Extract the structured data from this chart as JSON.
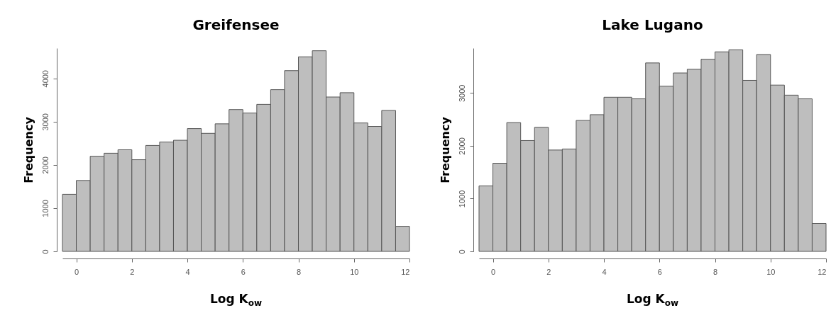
{
  "chart_data": [
    {
      "type": "histogram",
      "title": "Greifensee",
      "xlabel": "Log K$_{ow}$",
      "ylabel": "Frequency",
      "color": "#bebebe",
      "bins": [
        -0.5,
        0,
        0.5,
        1,
        1.5,
        2,
        2.5,
        3,
        3.5,
        4,
        4.5,
        5,
        5.5,
        6,
        6.5,
        7,
        7.5,
        8,
        8.5,
        9,
        9.5,
        10,
        10.5,
        11,
        11.5,
        12
      ],
      "values": [
        1320,
        1640,
        2200,
        2270,
        2350,
        2120,
        2450,
        2530,
        2570,
        2840,
        2730,
        2950,
        3280,
        3200,
        3400,
        3740,
        4180,
        4500,
        4640,
        3570,
        3670,
        2970,
        2890,
        3260,
        580
      ],
      "xlim": [
        -0.5,
        12
      ],
      "xticks": [
        0,
        2,
        4,
        6,
        8,
        10,
        12
      ],
      "ylim": [
        0,
        4700
      ],
      "yticks": [
        0,
        1000,
        2000,
        3000,
        4000
      ]
    },
    {
      "type": "histogram",
      "title": "Lake Lugano",
      "xlabel": "Log K$_{ow}$",
      "ylabel": "Frequency",
      "color": "#bebebe",
      "bins": [
        -0.5,
        0,
        0.5,
        1,
        1.5,
        2,
        2.5,
        3,
        3.5,
        4,
        4.5,
        5,
        5.5,
        6,
        6.5,
        7,
        7.5,
        8,
        8.5,
        9,
        9.5,
        10,
        10.5,
        11,
        11.5,
        12
      ],
      "values": [
        1240,
        1670,
        2440,
        2100,
        2350,
        1920,
        1940,
        2480,
        2590,
        2920,
        2920,
        2890,
        3570,
        3130,
        3380,
        3450,
        3640,
        3780,
        3820,
        3240,
        3730,
        3150,
        2960,
        2890,
        530
      ],
      "xlim": [
        -0.5,
        12
      ],
      "xticks": [
        0,
        2,
        4,
        6,
        8,
        10,
        12
      ],
      "ylim": [
        0,
        3850
      ],
      "yticks": [
        0,
        1000,
        2000,
        3000
      ]
    }
  ]
}
